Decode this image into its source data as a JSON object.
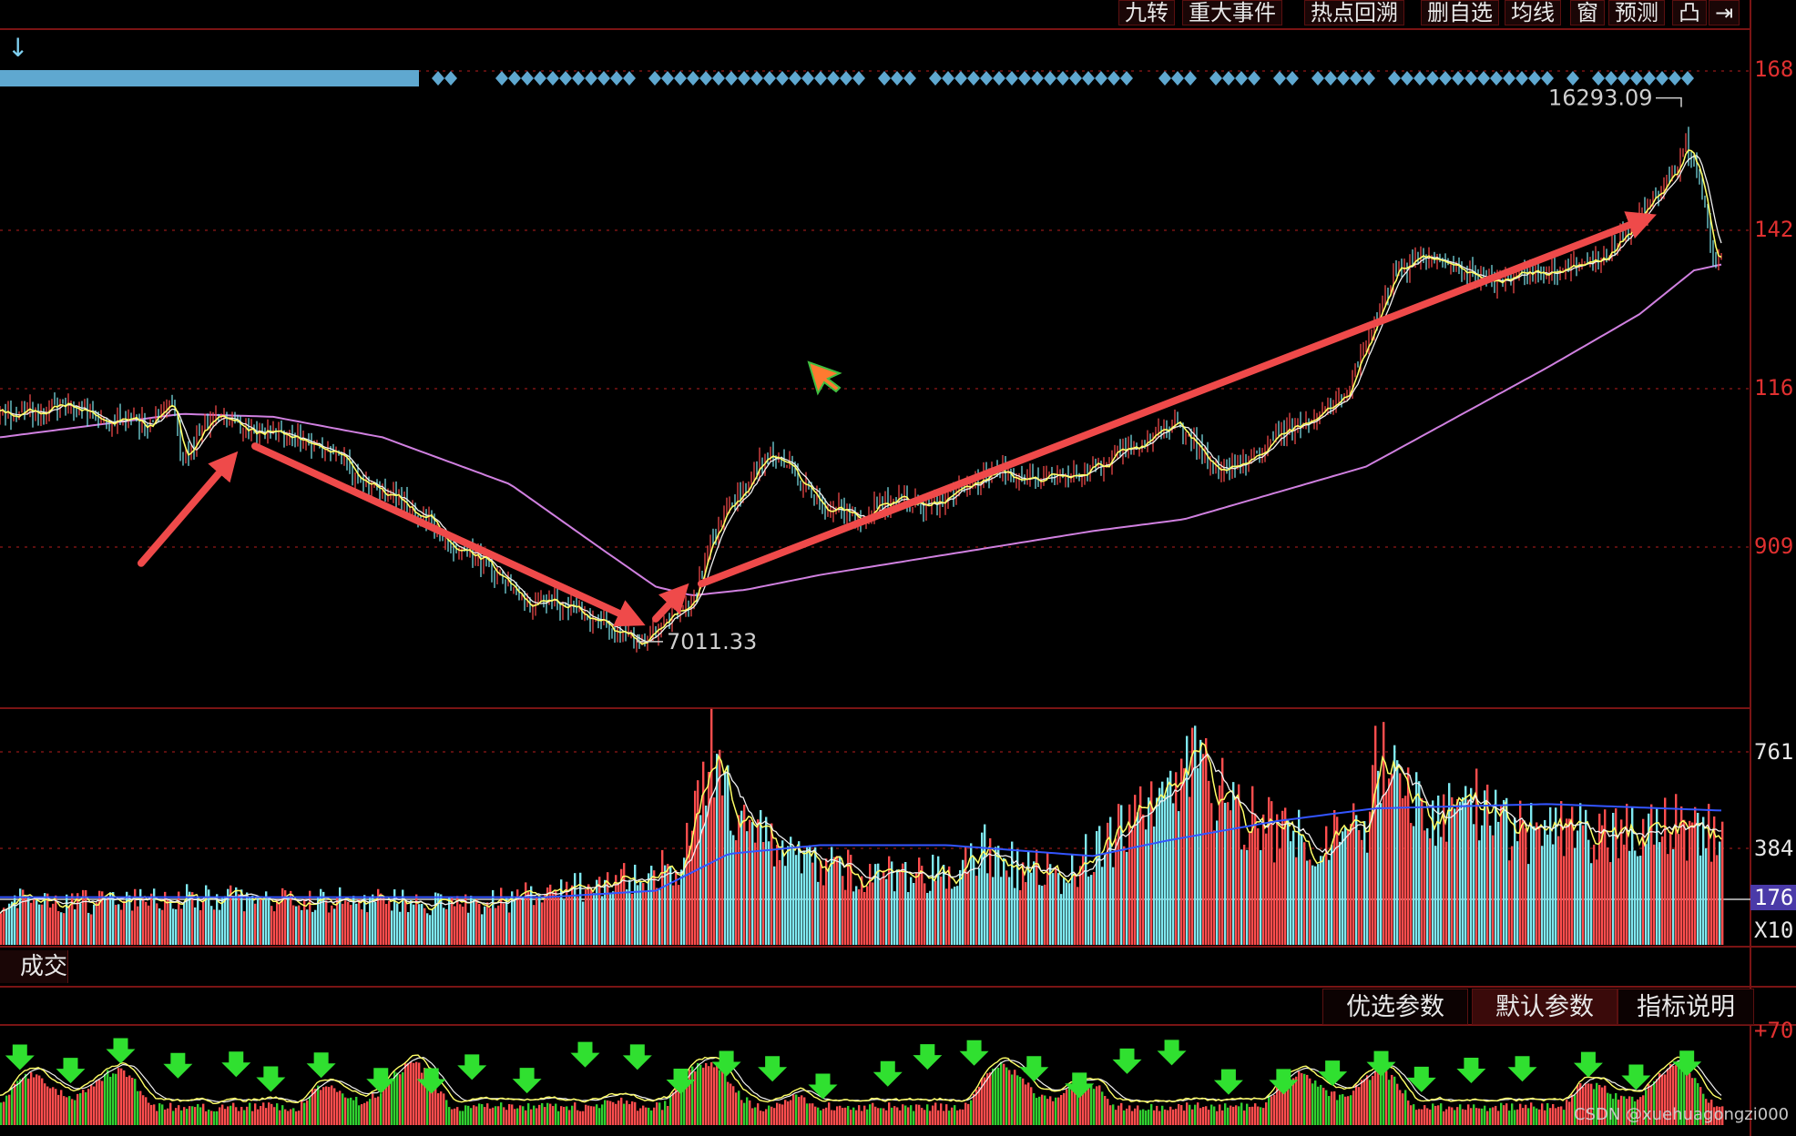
{
  "toolbar": {
    "buttons": [
      "九转",
      "重大事件",
      "热点回溯",
      "删自选",
      "均线",
      "窗",
      "预测",
      "凸",
      "⇥"
    ]
  },
  "price_axis": [
    "168",
    "142",
    "116",
    "909"
  ],
  "volume_axis": [
    "761",
    "384",
    "176",
    "X10"
  ],
  "osc_axis": [
    "+70"
  ],
  "volume_panel_label": "成交量",
  "indicator_tabs": [
    "优选参数",
    "默认参数",
    "指标说明"
  ],
  "watermark": "CSDN @xuehuagongzi000",
  "colors": {
    "up": "#ff4d4d",
    "down": "#7fe8f0",
    "ma_short": "#ffff66",
    "ma_long": "#d080e0",
    "vol_ma": "#3355ff",
    "arrow": "#ef4a4a",
    "grid": "#7a1414",
    "signal_top": "#5fa8d0",
    "axis_text": "#e03030"
  },
  "chart_data": {
    "type": "line",
    "title": "",
    "price_series": {
      "name": "",
      "points": [
        [
          0,
          10850
        ],
        [
          40,
          10950
        ],
        [
          80,
          11050
        ],
        [
          120,
          10800
        ],
        [
          160,
          10700
        ],
        [
          190,
          11050
        ],
        [
          200,
          10100
        ],
        [
          240,
          10950
        ],
        [
          280,
          10550
        ],
        [
          330,
          10500
        ],
        [
          370,
          10150
        ],
        [
          410,
          9650
        ],
        [
          440,
          9400
        ],
        [
          470,
          9150
        ],
        [
          500,
          8650
        ],
        [
          530,
          8400
        ],
        [
          560,
          7950
        ],
        [
          580,
          7550
        ],
        [
          600,
          7700
        ],
        [
          640,
          7500
        ],
        [
          680,
          7200
        ],
        [
          700,
          7011.33
        ],
        [
          730,
          7350
        ],
        [
          760,
          7700
        ],
        [
          780,
          8700
        ],
        [
          800,
          9250
        ],
        [
          820,
          9650
        ],
        [
          840,
          10200
        ],
        [
          860,
          10100
        ],
        [
          880,
          9700
        ],
        [
          900,
          9350
        ],
        [
          940,
          9150
        ],
        [
          980,
          9450
        ],
        [
          1020,
          9300
        ],
        [
          1060,
          9700
        ],
        [
          1100,
          9900
        ],
        [
          1140,
          9750
        ],
        [
          1180,
          9850
        ],
        [
          1220,
          10150
        ],
        [
          1260,
          10500
        ],
        [
          1290,
          10750
        ],
        [
          1310,
          10400
        ],
        [
          1340,
          9850
        ],
        [
          1370,
          10100
        ],
        [
          1400,
          10500
        ],
        [
          1440,
          10800
        ],
        [
          1480,
          11300
        ],
        [
          1510,
          12500
        ],
        [
          1530,
          13300
        ],
        [
          1560,
          13600
        ],
        [
          1600,
          13400
        ],
        [
          1640,
          13100
        ],
        [
          1680,
          13300
        ],
        [
          1720,
          13400
        ],
        [
          1760,
          13550
        ],
        [
          1800,
          14300
        ],
        [
          1820,
          14700
        ],
        [
          1840,
          15000
        ],
        [
          1850,
          15600
        ],
        [
          1870,
          14700
        ],
        [
          1880,
          13600
        ],
        [
          1890,
          13500
        ]
      ]
    },
    "annotations": [
      {
        "label": "16293.09",
        "kind": "high",
        "x": 1846,
        "value": 16293.09
      },
      {
        "label": "7011.33",
        "kind": "low",
        "x": 700,
        "value": 7011.33
      }
    ],
    "ma_long_points": [
      [
        0,
        10500
      ],
      [
        200,
        10900
      ],
      [
        300,
        10850
      ],
      [
        420,
        10500
      ],
      [
        560,
        9700
      ],
      [
        660,
        8600
      ],
      [
        720,
        7950
      ],
      [
        760,
        7800
      ],
      [
        820,
        7900
      ],
      [
        900,
        8150
      ],
      [
        1000,
        8400
      ],
      [
        1100,
        8650
      ],
      [
        1200,
        8900
      ],
      [
        1300,
        9100
      ],
      [
        1400,
        9550
      ],
      [
        1500,
        10000
      ],
      [
        1600,
        10850
      ],
      [
        1700,
        11700
      ],
      [
        1800,
        12600
      ],
      [
        1860,
        13350
      ],
      [
        1890,
        13450
      ]
    ],
    "trend_arrows": [
      {
        "from": [
          155,
          8350
        ],
        "to": [
          255,
          10150
        ]
      },
      {
        "from": [
          280,
          10350
        ],
        "to": [
          700,
          7350
        ]
      },
      {
        "from": [
          720,
          7400
        ],
        "to": [
          750,
          7900
        ]
      },
      {
        "from": [
          770,
          8000
        ],
        "to": [
          1810,
          14250
        ]
      }
    ],
    "volume_profile": [
      [
        0,
        0.22
      ],
      [
        100,
        0.21
      ],
      [
        200,
        0.24
      ],
      [
        300,
        0.22
      ],
      [
        400,
        0.23
      ],
      [
        500,
        0.2
      ],
      [
        560,
        0.23
      ],
      [
        620,
        0.27
      ],
      [
        680,
        0.32
      ],
      [
        740,
        0.38
      ],
      [
        760,
        0.56
      ],
      [
        780,
        0.92
      ],
      [
        800,
        0.75
      ],
      [
        830,
        0.62
      ],
      [
        860,
        0.45
      ],
      [
        900,
        0.4
      ],
      [
        960,
        0.34
      ],
      [
        1060,
        0.38
      ],
      [
        1080,
        0.5
      ],
      [
        1120,
        0.38
      ],
      [
        1160,
        0.35
      ],
      [
        1200,
        0.45
      ],
      [
        1240,
        0.6
      ],
      [
        1280,
        0.68
      ],
      [
        1310,
        0.92
      ],
      [
        1340,
        0.75
      ],
      [
        1380,
        0.6
      ],
      [
        1440,
        0.55
      ],
      [
        1500,
        0.55
      ],
      [
        1510,
        0.95
      ],
      [
        1540,
        0.7
      ],
      [
        1580,
        0.62
      ],
      [
        1610,
        0.72
      ],
      [
        1650,
        0.58
      ],
      [
        1700,
        0.56
      ],
      [
        1780,
        0.55
      ],
      [
        1820,
        0.6
      ],
      [
        1860,
        0.58
      ],
      [
        1890,
        0.55
      ]
    ],
    "vol_ma_profile": [
      [
        0,
        0.22
      ],
      [
        300,
        0.22
      ],
      [
        600,
        0.22
      ],
      [
        720,
        0.25
      ],
      [
        800,
        0.42
      ],
      [
        900,
        0.46
      ],
      [
        1040,
        0.46
      ],
      [
        1200,
        0.41
      ],
      [
        1280,
        0.48
      ],
      [
        1400,
        0.57
      ],
      [
        1510,
        0.63
      ],
      [
        1700,
        0.65
      ],
      [
        1890,
        0.62
      ]
    ],
    "y_axis": {
      "range": [
        6000,
        17500
      ]
    }
  }
}
